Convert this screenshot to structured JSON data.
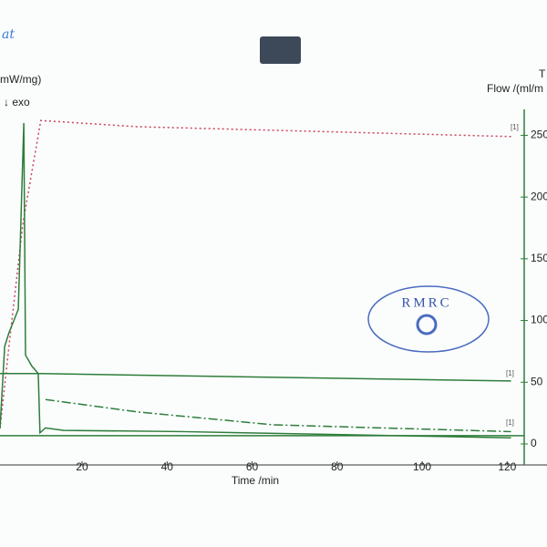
{
  "chart_data": {
    "type": "line",
    "handwriting": "at",
    "y_left_label": "mW/mg)",
    "exo_label": "↓ exo",
    "y_right_label_top": "T",
    "y_right_label": "Flow /(ml/m",
    "x_label": "Time /min",
    "stamp": "RMRC",
    "xlim": [
      0.7,
      124
    ],
    "xticks": [
      20,
      40,
      60,
      80,
      100,
      120
    ],
    "ylim": [
      -17,
      271
    ],
    "yticks": [
      0,
      50,
      100,
      150,
      200,
      250
    ],
    "series": [
      {
        "color": "#d0405a",
        "dash": "2,3",
        "x": [
          0.7,
          2.8,
          6.1,
          10.3,
          32.9,
          120.9
        ],
        "values": [
          12.6,
          79,
          179,
          262,
          257,
          249
        ]
      },
      {
        "color": "#2e7d3a",
        "dash": "none",
        "x": [
          0.7,
          1.8,
          2.8,
          5,
          6.3,
          6.7,
          8.2,
          9.7,
          10.1,
          11.4,
          15.7,
          43.6,
          120.9
        ],
        "values": [
          12.6,
          79,
          90,
          109,
          260,
          72,
          63,
          57,
          9,
          13,
          11,
          10,
          5
        ]
      },
      {
        "color": "#2e7d3a",
        "dash": "none",
        "x": [
          0.7,
          10.3,
          120.9
        ],
        "values": [
          57,
          57,
          51
        ]
      },
      {
        "color": "#2e7d3a",
        "dash": "10,3,2,3",
        "x": [
          11.4,
          32.9,
          65,
          120.9
        ],
        "values": [
          36,
          26,
          15.5,
          10
        ]
      },
      {
        "color": "#2e7d3a",
        "dash": "none",
        "x": [
          0.7,
          124
        ],
        "values": [
          6.7,
          6.7
        ]
      }
    ],
    "annotations": [
      "[1]",
      "[1]",
      "[1]"
    ]
  }
}
